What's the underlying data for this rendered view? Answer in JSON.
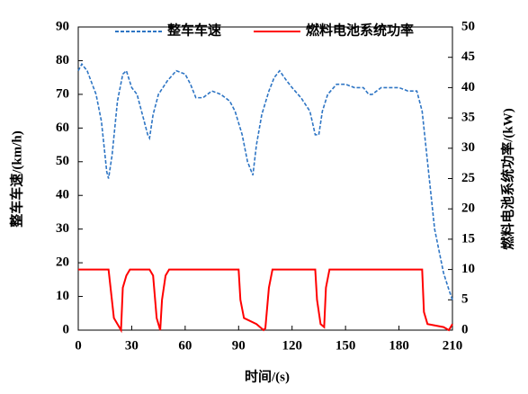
{
  "chart_data": {
    "type": "line",
    "xlabel": "时间/(s)",
    "ylabel": "整车车速/(km/h)",
    "y2label": "燃料电池系统功率/(kW)",
    "xlim": [
      0,
      210
    ],
    "xticks": [
      0,
      30,
      60,
      90,
      120,
      150,
      180,
      210
    ],
    "ylim": [
      0,
      90
    ],
    "yticks": [
      0,
      10,
      20,
      30,
      40,
      50,
      60,
      70,
      80,
      90
    ],
    "y2lim": [
      0,
      50
    ],
    "y2ticks": [
      0,
      5,
      10,
      15,
      20,
      25,
      30,
      35,
      40,
      45,
      50
    ],
    "series": [
      {
        "name": "整车车速",
        "color": "#2e75c4",
        "dash": true,
        "x": [
          0,
          2,
          5,
          10,
          13,
          16,
          17,
          19,
          22,
          25,
          27,
          30,
          33,
          36,
          39,
          40,
          42,
          45,
          50,
          55,
          60,
          63,
          66,
          70,
          75,
          80,
          85,
          88,
          92,
          95,
          98,
          100,
          103,
          107,
          110,
          113,
          117,
          120,
          125,
          130,
          133,
          135,
          137,
          140,
          145,
          150,
          155,
          160,
          163,
          165,
          170,
          180,
          185,
          190,
          193,
          197,
          200,
          205,
          208,
          210
        ],
        "values": [
          77,
          79,
          77,
          70,
          62,
          47,
          45,
          52,
          68,
          76,
          77,
          72,
          70,
          64,
          58,
          57,
          64,
          70,
          74,
          77,
          76,
          73,
          69,
          69,
          71,
          70,
          68,
          65,
          58,
          50,
          46,
          55,
          64,
          71,
          75,
          77,
          74,
          72,
          69,
          65,
          58,
          58,
          65,
          70,
          73,
          73,
          72,
          72,
          70,
          70,
          72,
          72,
          71,
          71,
          65,
          45,
          30,
          17,
          12,
          9
        ]
      },
      {
        "name": "燃料电池系统功率",
        "color": "#ff0000",
        "dash": false,
        "axis": "y2",
        "x": [
          0,
          17,
          20,
          22,
          24,
          25,
          27,
          29,
          40,
          42,
          44,
          46,
          47,
          49,
          51,
          90,
          91,
          93,
          100,
          104,
          105,
          107,
          109,
          133,
          134,
          136,
          138,
          139,
          141,
          193,
          194,
          196,
          205,
          208,
          210
        ],
        "values": [
          10,
          10,
          2,
          1,
          0,
          7,
          9,
          10,
          10,
          9,
          2,
          0,
          5,
          9,
          10,
          10,
          5,
          2,
          1,
          0,
          0.3,
          7,
          10,
          10,
          5,
          1,
          0.5,
          7,
          10,
          10,
          3,
          1,
          0.5,
          0,
          1
        ]
      }
    ]
  }
}
